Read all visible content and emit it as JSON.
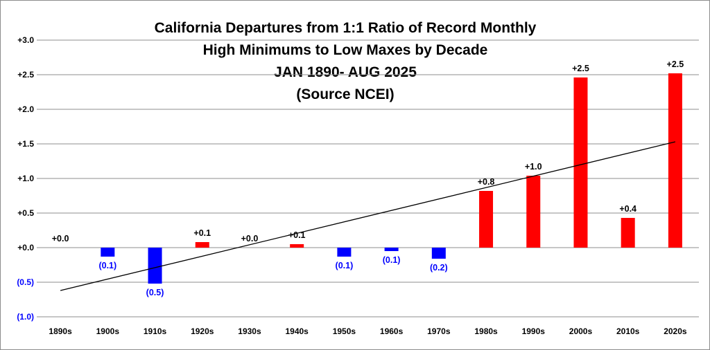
{
  "chart_data": {
    "type": "bar",
    "title_lines": [
      "California Departures from 1:1 Ratio of Record Monthly",
      "High Minimums to Low Maxes by Decade",
      "JAN 1890- AUG 2025",
      "(Source NCEI)"
    ],
    "categories": [
      "1890s",
      "1900s",
      "1910s",
      "1920s",
      "1930s",
      "1940s",
      "1950s",
      "1960s",
      "1970s",
      "1980s",
      "1990s",
      "2000s",
      "2010s",
      "2020s"
    ],
    "values": [
      0.0,
      -0.13,
      -0.52,
      0.08,
      0.0,
      0.05,
      -0.13,
      -0.05,
      -0.16,
      0.82,
      1.04,
      2.46,
      0.43,
      2.52
    ],
    "data_labels": [
      "+0.0",
      "(0.1)",
      "(0.5)",
      "+0.1",
      "+0.0",
      "+0.1",
      "(0.1)",
      "(0.1)",
      "(0.2)",
      "+0.8",
      "+1.0",
      "+2.5",
      "+0.4",
      "+2.5"
    ],
    "ylim": [
      -1.0,
      3.0
    ],
    "yticks": [
      {
        "value": 3.0,
        "label": "+3.0"
      },
      {
        "value": 2.5,
        "label": "+2.5"
      },
      {
        "value": 2.0,
        "label": "+2.0"
      },
      {
        "value": 1.5,
        "label": "+1.5"
      },
      {
        "value": 1.0,
        "label": "+1.0"
      },
      {
        "value": 0.5,
        "label": "+0.5"
      },
      {
        "value": 0.0,
        "label": "+0.0"
      },
      {
        "value": -0.5,
        "label": "(0.5)"
      },
      {
        "value": -1.0,
        "label": "(1.0)"
      }
    ],
    "trendline": {
      "start_value": -0.62,
      "end_value": 1.53,
      "color": "#000000"
    },
    "grid": true,
    "legend": "none",
    "colors": {
      "positive": "#ff0000",
      "negative": "#0000ff",
      "positive_label": "#000000",
      "negative_label": "#0000ff",
      "tick_label": "#000000",
      "gridline": "#8c8c8c"
    }
  }
}
